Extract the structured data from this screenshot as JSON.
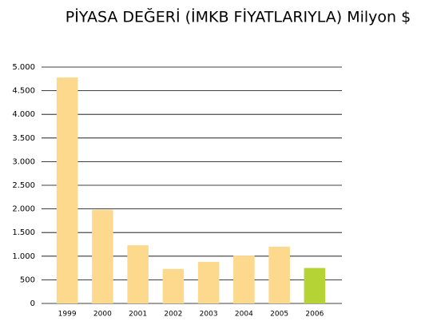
{
  "chart_data": {
    "type": "bar",
    "title": "PİYASA DEĞERİ (İMKB FİYATLARIYLA) Milyon $",
    "categories": [
      "1999",
      "2000",
      "2001",
      "2002",
      "2003",
      "2004",
      "2005",
      "2006"
    ],
    "values": [
      4780,
      1980,
      1230,
      730,
      880,
      1010,
      1200,
      750
    ],
    "colors": [
      "#fdd98e",
      "#fdd98e",
      "#fdd98e",
      "#fdd98e",
      "#fdd98e",
      "#fdd98e",
      "#fdd98e",
      "#b5d334"
    ],
    "ylim": [
      0,
      5000
    ],
    "yticks": [
      0,
      500,
      {
        "value": 1000,
        "label": "1.000"
      },
      {
        "value": 1500,
        "label": "1.500"
      },
      {
        "value": 2000,
        "label": "2.000"
      },
      {
        "value": 2500,
        "label": "2.500"
      },
      {
        "value": 3000,
        "label": "3.000"
      },
      {
        "value": 3500,
        "label": "3.500"
      },
      {
        "value": 4000,
        "label": "4.000"
      },
      {
        "value": 4500,
        "label": "4.500"
      },
      {
        "value": 5000,
        "label": "5.000"
      }
    ],
    "grid": true
  }
}
